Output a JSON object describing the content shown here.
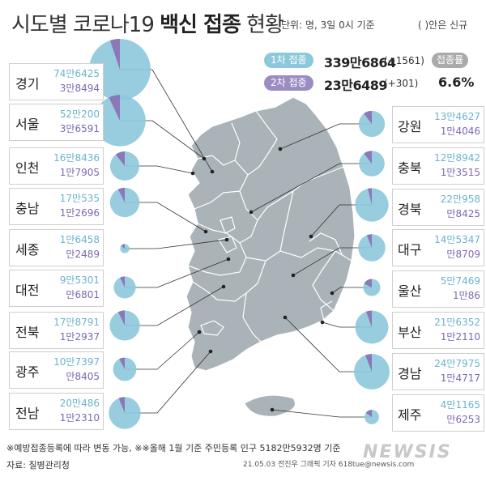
{
  "title_light_1": "시도별 코로나19 ",
  "title_bold": "백신 접종",
  "title_light_2": " 현황",
  "unit_note": "단위: 명, 3일 0시 기준",
  "paren_note": "( )안은 신규",
  "dose1": {
    "label": "1차 접종",
    "total": "339만6864",
    "new": "(+1561)"
  },
  "dose2": {
    "label": "2차 접종",
    "total": "23만6489",
    "new": "(+301)"
  },
  "rate": {
    "label": "접종률",
    "value": "6.6%"
  },
  "footnote": "※예방접종등록에 따라 변동 가능, ※※올해 1월 기준 주민등록 인구 5182만5932명 기준",
  "source": "자료: 질병관리청",
  "credit": "21.05.03 전진우 그래픽 기자 618tue@newsis.com",
  "watermark": "NEWSIS",
  "colors": {
    "dose1": "#8cc8dc",
    "dose2": "#8a78b8",
    "map": "#aab3b7",
    "map_line": "#ffffff"
  },
  "chart_data": {
    "type": "pie",
    "series_names": [
      "1차 접종",
      "2차 접종"
    ],
    "regions": [
      {
        "name": "경기",
        "dose1": "74만6425",
        "dose2": "3만8494",
        "dose1_value": 746425,
        "dose2_value": 38494
      },
      {
        "name": "서울",
        "dose1": "52만200",
        "dose2": "3만6591",
        "dose1_value": 520200,
        "dose2_value": 36591
      },
      {
        "name": "인천",
        "dose1": "16만8436",
        "dose2": "1만7905",
        "dose1_value": 168436,
        "dose2_value": 17905
      },
      {
        "name": "충남",
        "dose1": "17만535",
        "dose2": "1만2696",
        "dose1_value": 170535,
        "dose2_value": 12696
      },
      {
        "name": "세종",
        "dose1": "1만6458",
        "dose2": "만2489",
        "dose1_value": 16458,
        "dose2_value": 2489
      },
      {
        "name": "대전",
        "dose1": "9만5301",
        "dose2": "만6801",
        "dose1_value": 95301,
        "dose2_value": 6801
      },
      {
        "name": "전북",
        "dose1": "17만8791",
        "dose2": "1만2937",
        "dose1_value": 178791,
        "dose2_value": 12937
      },
      {
        "name": "광주",
        "dose1": "10만7397",
        "dose2": "만8405",
        "dose1_value": 107397,
        "dose2_value": 8405
      },
      {
        "name": "전남",
        "dose1": "20만486",
        "dose2": "1만2310",
        "dose1_value": 200486,
        "dose2_value": 12310
      },
      {
        "name": "강원",
        "dose1": "13만4627",
        "dose2": "1만4046",
        "dose1_value": 134627,
        "dose2_value": 14046
      },
      {
        "name": "충북",
        "dose1": "12만8942",
        "dose2": "1만3515",
        "dose1_value": 128942,
        "dose2_value": 13515
      },
      {
        "name": "경북",
        "dose1": "22만958",
        "dose2": "만8425",
        "dose1_value": 220958,
        "dose2_value": 8425
      },
      {
        "name": "대구",
        "dose1": "14만5347",
        "dose2": "만8709",
        "dose1_value": 145347,
        "dose2_value": 8709
      },
      {
        "name": "울산",
        "dose1": "5만7469",
        "dose2": "1만86",
        "dose1_value": 57469,
        "dose2_value": 10086
      },
      {
        "name": "부산",
        "dose1": "21만6352",
        "dose2": "1만2110",
        "dose1_value": 216352,
        "dose2_value": 12110
      },
      {
        "name": "경남",
        "dose1": "24만7975",
        "dose2": "1만4717",
        "dose1_value": 247975,
        "dose2_value": 14717
      },
      {
        "name": "제주",
        "dose1": "4만1165",
        "dose2": "만6253",
        "dose1_value": 41165,
        "dose2_value": 6253
      }
    ]
  }
}
